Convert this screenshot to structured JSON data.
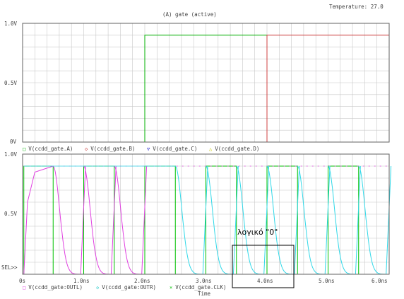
{
  "header": {
    "temperature": "Temperature: 27.0",
    "plot_title": "(A) gate (active)"
  },
  "top_plot": {
    "yticks": [
      "1.0V",
      "0.5V",
      "0V"
    ],
    "legend": [
      {
        "marker": "□",
        "label": "V(ccdd_gate.A)",
        "color": "#00b000"
      },
      {
        "marker": "◇",
        "label": "V(ccdd_gate.B)",
        "color": "#c02020"
      },
      {
        "marker": "▽",
        "label": "V(ccdd_gate.C)",
        "color": "#0000c0"
      },
      {
        "marker": "△",
        "label": "V(ccdd_gate.D)",
        "color": "#c8c800"
      }
    ]
  },
  "bottom_plot": {
    "yticks": [
      "1.0V",
      "0.5V",
      "SEL>>"
    ],
    "xticks": [
      "0s",
      "1.0ns",
      "2.0ns",
      "3.0ns",
      "4.0ns",
      "5.0ns",
      "6.0ns"
    ],
    "xlabel": "Time",
    "legend": [
      {
        "marker": "□",
        "label": "V(ccdd_gate:OUTL)",
        "color": "#e040e0"
      },
      {
        "marker": "◇",
        "label": "V(ccdd_gate:OUTR)",
        "color": "#00c0c0"
      },
      {
        "marker": "×",
        "label": "V(ccdd_gate.CLK)",
        "color": "#00c000"
      }
    ],
    "annotation": "λογικό \"0\""
  },
  "colors": {
    "grid": "#c8c8c8",
    "frame": "#606060",
    "A": "#00b000",
    "B": "#d04040",
    "OUTL": "#e040e0",
    "OUTR": "#30d8e8",
    "CLK": "#00c000"
  }
}
